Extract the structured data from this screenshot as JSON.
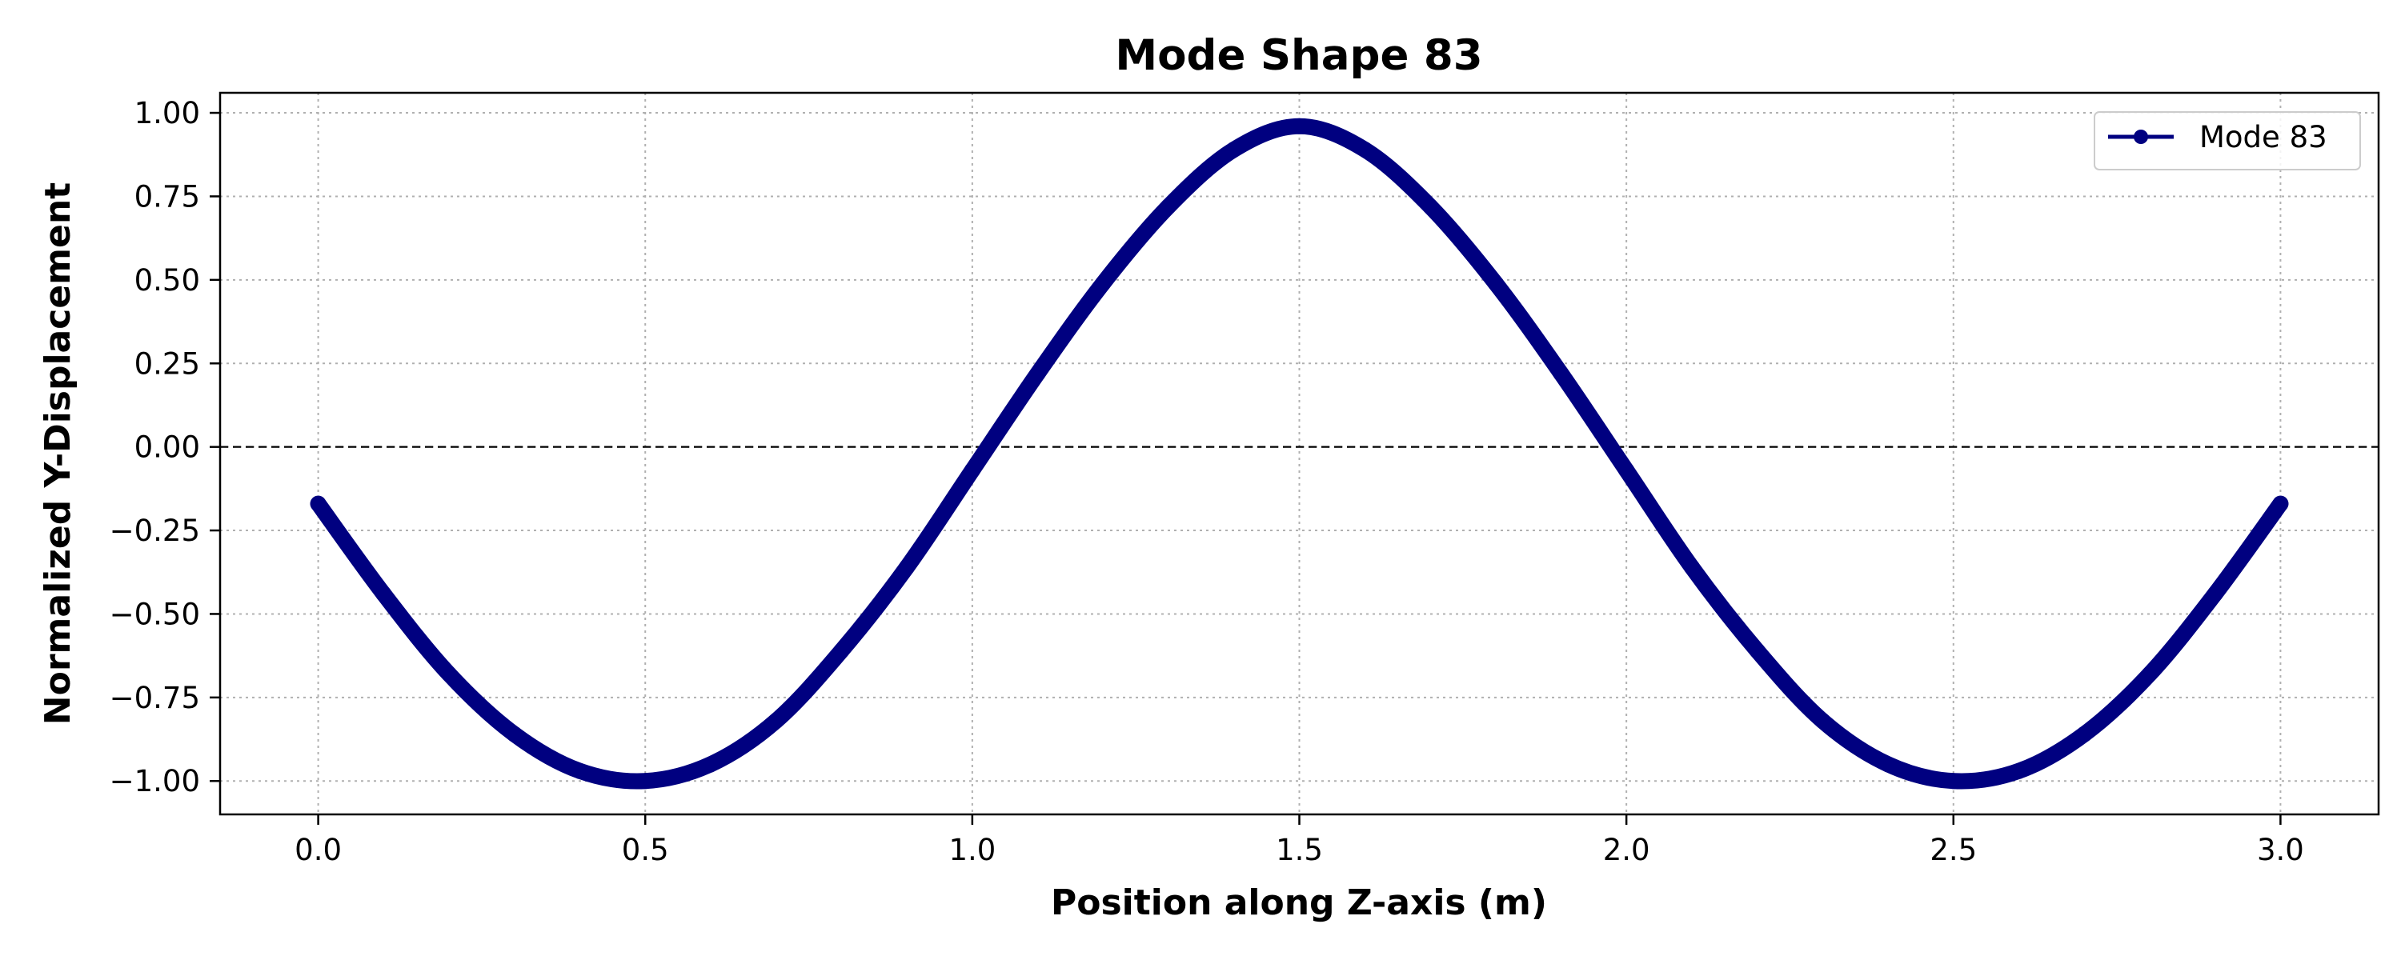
{
  "chart_data": {
    "type": "line",
    "title": "Mode Shape 83",
    "xlabel": "Position along Z-axis (m)",
    "ylabel": "Normalized Y-Displacement",
    "xlim": [
      -0.15,
      3.15
    ],
    "ylim": [
      -1.1,
      1.06
    ],
    "x_ticks": [
      0.0,
      0.5,
      1.0,
      1.5,
      2.0,
      2.5,
      3.0
    ],
    "x_tick_labels": [
      "0.0",
      "0.5",
      "1.0",
      "1.5",
      "2.0",
      "2.5",
      "3.0"
    ],
    "y_ticks": [
      1.0,
      0.75,
      0.5,
      0.25,
      0.0,
      -0.25,
      -0.5,
      -0.75,
      -1.0
    ],
    "y_tick_labels": [
      "1.00",
      "0.75",
      "0.50",
      "0.25",
      "0.00",
      "−0.25",
      "−0.50",
      "−0.75",
      "−1.00"
    ],
    "grid": true,
    "grid_style": "dotted",
    "zero_line": {
      "y": 0.0,
      "style": "dashed",
      "color": "#000000"
    },
    "legend_position": "top-right",
    "marker": "circle",
    "series": [
      {
        "name": "Mode 83",
        "color": "#000080",
        "x": [
          0.0,
          0.1,
          0.2,
          0.3,
          0.4,
          0.5,
          0.6,
          0.7,
          0.8,
          0.9,
          1.0,
          1.1,
          1.2,
          1.3,
          1.4,
          1.5,
          1.6,
          1.7,
          1.8,
          1.9,
          2.0,
          2.1,
          2.2,
          2.3,
          2.4,
          2.5,
          2.6,
          2.7,
          2.8,
          2.9,
          3.0
        ],
        "y": [
          -0.17,
          -0.44,
          -0.68,
          -0.86,
          -0.97,
          -1.0,
          -0.95,
          -0.82,
          -0.61,
          -0.36,
          -0.07,
          0.22,
          0.49,
          0.72,
          0.89,
          0.96,
          0.89,
          0.72,
          0.49,
          0.22,
          -0.07,
          -0.36,
          -0.61,
          -0.82,
          -0.95,
          -1.0,
          -0.97,
          -0.86,
          -0.68,
          -0.44,
          -0.17
        ]
      }
    ]
  }
}
